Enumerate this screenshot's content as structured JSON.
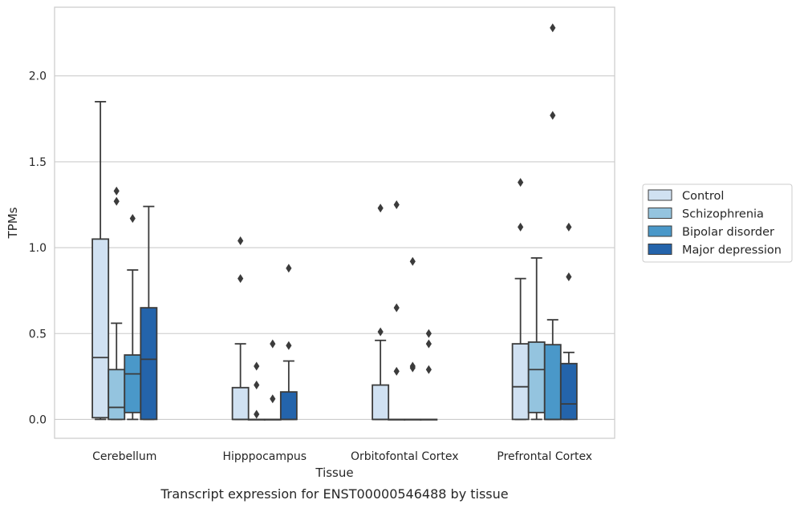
{
  "chart_data": {
    "type": "box",
    "caption": "Transcript expression for ENST00000546488 by tissue",
    "xlabel": "Tissue",
    "ylabel": "TPMs",
    "ylim": [
      -0.11,
      2.4
    ],
    "yticks": [
      "0.0",
      "0.5",
      "1.0",
      "1.5",
      "2.0"
    ],
    "grid": true,
    "legend_position": "right",
    "categories": [
      "Cerebellum",
      "Hipppocampus",
      "Orbitofontal Cortex",
      "Prefrontal Cortex"
    ],
    "series": [
      {
        "name": "Control",
        "color": "#d0e1f2",
        "boxes": [
          {
            "min": 0.0,
            "q1": 0.01,
            "median": 0.36,
            "q3": 1.05,
            "max": 1.85,
            "outliers": []
          },
          {
            "min": 0.0,
            "q1": 0.0,
            "median": 0.0,
            "q3": 0.185,
            "max": 0.44,
            "outliers": [
              0.82,
              1.04
            ]
          },
          {
            "min": 0.0,
            "q1": 0.0,
            "median": 0.0,
            "q3": 0.2,
            "max": 0.46,
            "outliers": [
              0.51,
              1.23
            ]
          },
          {
            "min": 0.0,
            "q1": 0.0,
            "median": 0.19,
            "q3": 0.44,
            "max": 0.82,
            "outliers": [
              1.12,
              1.38
            ]
          }
        ]
      },
      {
        "name": "Schizophrenia",
        "color": "#94c4df",
        "boxes": [
          {
            "min": 0.0,
            "q1": 0.0,
            "median": 0.07,
            "q3": 0.29,
            "max": 0.56,
            "outliers": [
              1.27,
              1.33
            ]
          },
          {
            "min": 0.0,
            "q1": 0.0,
            "median": 0.0,
            "q3": 0.0,
            "max": 0.0,
            "outliers": [
              0.03,
              0.2,
              0.31
            ]
          },
          {
            "min": 0.0,
            "q1": 0.0,
            "median": 0.0,
            "q3": 0.0,
            "max": 0.0,
            "outliers": [
              0.28,
              0.65,
              1.25
            ]
          },
          {
            "min": 0.0,
            "q1": 0.04,
            "median": 0.29,
            "q3": 0.45,
            "max": 0.94,
            "outliers": []
          }
        ]
      },
      {
        "name": "Bipolar disorder",
        "color": "#4a98c9",
        "boxes": [
          {
            "min": 0.0,
            "q1": 0.04,
            "median": 0.265,
            "q3": 0.375,
            "max": 0.87,
            "outliers": [
              1.17
            ]
          },
          {
            "min": 0.0,
            "q1": 0.0,
            "median": 0.0,
            "q3": 0.0,
            "max": 0.0,
            "outliers": [
              0.12,
              0.44
            ]
          },
          {
            "min": 0.0,
            "q1": 0.0,
            "median": 0.0,
            "q3": 0.0,
            "max": 0.0,
            "outliers": [
              0.3,
              0.31,
              0.92
            ]
          },
          {
            "min": 0.0,
            "q1": 0.0,
            "median": 0.0,
            "q3": 0.435,
            "max": 0.58,
            "outliers": [
              1.77,
              2.28
            ]
          }
        ]
      },
      {
        "name": "Major depression",
        "color": "#2464ab",
        "boxes": [
          {
            "min": 0.0,
            "q1": 0.0,
            "median": 0.35,
            "q3": 0.65,
            "max": 1.24,
            "outliers": []
          },
          {
            "min": 0.0,
            "q1": 0.0,
            "median": 0.0,
            "q3": 0.16,
            "max": 0.34,
            "outliers": [
              0.43,
              0.88
            ]
          },
          {
            "min": 0.0,
            "q1": 0.0,
            "median": 0.0,
            "q3": 0.0,
            "max": 0.0,
            "outliers": [
              0.29,
              0.44,
              0.5
            ]
          },
          {
            "min": 0.0,
            "q1": 0.0,
            "median": 0.09,
            "q3": 0.325,
            "max": 0.39,
            "outliers": [
              0.83,
              1.12
            ]
          }
        ]
      }
    ]
  }
}
